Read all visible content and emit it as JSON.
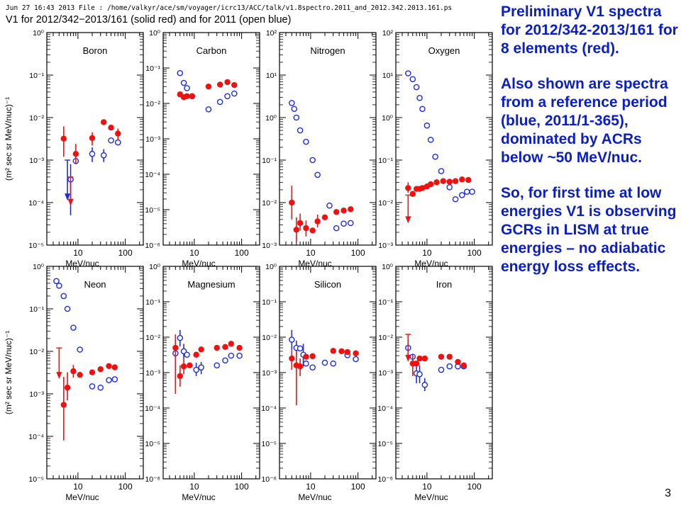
{
  "header": {
    "line1": "Jun 27 16:43 2013    File : /home/valkyr/ace/sm/voyager/icrc13/ACC/talk/v1.8spectro.2011_and_2012.342.2013.161.ps",
    "line2": "V1 for 2012/342−2013/161 (solid red) and for 2011 (open blue)"
  },
  "notes": [
    "Preliminary V1 spectra for 2012/342-2013/161 for 8 elements (red).",
    "Also shown are spectra from a reference period (blue, 2011/1-365), dominated by ACRs below ~50 MeV/nuc.",
    "So, for first time at low energies V1 is observing GCRs in LISM at true energies – no adiabatic energy loss effects."
  ],
  "page_number": "3",
  "colors": {
    "red_series": "#ee1111",
    "blue_series": "#1f2fd6",
    "notes_text": "#0b1ec6"
  },
  "chart_data": {
    "type": "scatter",
    "layout": "2x4 grid",
    "x_scale": "log",
    "y_scale": "log",
    "xlabel": "MeV/nuc",
    "ylabel": "(m² sec sr MeV/nuc)⁻¹",
    "x_tick_labels": [
      "10",
      "100"
    ],
    "series_legend": [
      {
        "name": "2012/342−2013/161",
        "style": "solid red"
      },
      {
        "name": "2011",
        "style": "open blue"
      }
    ],
    "panels": [
      {
        "element": "Boron",
        "ylim": [
          1e-05,
          1
        ],
        "y_tick_labels": [
          "10⁻⁵",
          "10⁻⁴",
          "10⁻³",
          "10⁻²",
          "10⁻¹",
          "10⁰"
        ],
        "red": [
          {
            "x": 5,
            "y": 0.0032,
            "lo": 0.0012,
            "hi": 0.0062
          },
          {
            "x": 7,
            "y": null,
            "limit": 0.0004,
            "arrow_to": 9e-05
          },
          {
            "x": 9,
            "y": 0.0014,
            "lo": 0.0008,
            "hi": 0.0024
          },
          {
            "x": 20,
            "y": 0.0033,
            "lo": 0.0022,
            "hi": 0.0045
          },
          {
            "x": 35,
            "y": 0.0078
          },
          {
            "x": 50,
            "y": 0.0058
          },
          {
            "x": 70,
            "y": 0.0042,
            "lo": 0.003,
            "hi": 0.0055
          }
        ],
        "blue": [
          {
            "x": 6,
            "y": null,
            "limit": 0.001,
            "arrow_to": 0.00012
          },
          {
            "x": 7,
            "y": 0.00035,
            "lo": 5e-05,
            "hi": 0.0008
          },
          {
            "x": 9,
            "y": 0.00095
          },
          {
            "x": 20,
            "y": 0.0014,
            "lo": 0.0009,
            "hi": 0.002
          },
          {
            "x": 35,
            "y": 0.0013,
            "lo": 0.0009,
            "hi": 0.0018
          },
          {
            "x": 50,
            "y": 0.0029
          },
          {
            "x": 70,
            "y": 0.0026
          }
        ]
      },
      {
        "element": "Carbon",
        "ylim": [
          1e-06,
          1
        ],
        "y_tick_labels": [
          "10⁻⁶",
          "10⁻⁵",
          "10⁻⁴",
          "10⁻³",
          "10⁻²",
          "10⁻¹",
          "10⁰"
        ],
        "red": [
          {
            "x": 5,
            "y": 0.018
          },
          {
            "x": 6,
            "y": 0.015
          },
          {
            "x": 7,
            "y": 0.016
          },
          {
            "x": 9,
            "y": 0.016
          },
          {
            "x": 20,
            "y": 0.03
          },
          {
            "x": 35,
            "y": 0.034
          },
          {
            "x": 50,
            "y": 0.04
          },
          {
            "x": 70,
            "y": 0.033
          }
        ],
        "blue": [
          {
            "x": 5,
            "y": 0.072
          },
          {
            "x": 6,
            "y": 0.038
          },
          {
            "x": 7,
            "y": 0.027
          },
          {
            "x": 9,
            "y": 0.016
          },
          {
            "x": 20,
            "y": 0.0068
          },
          {
            "x": 35,
            "y": 0.011
          },
          {
            "x": 50,
            "y": 0.016
          },
          {
            "x": 70,
            "y": 0.019
          }
        ]
      },
      {
        "element": "Nitrogen",
        "ylim": [
          0.001,
          100
        ],
        "y_tick_labels": [
          "10⁻³",
          "10⁻²",
          "10⁻¹",
          "10⁰",
          "10¹",
          "10²"
        ],
        "red": [
          {
            "x": 4,
            "y": 0.01,
            "lo": 0.004,
            "hi": 0.025
          },
          {
            "x": 5,
            "y": 0.0023,
            "lo": 0.0012,
            "hi": 0.0045
          },
          {
            "x": 6,
            "y": 0.0033,
            "lo": 0.0022,
            "hi": 0.0055
          },
          {
            "x": 8,
            "y": 0.0025,
            "lo": 0.0016,
            "hi": 0.0038
          },
          {
            "x": 11,
            "y": 0.0022
          },
          {
            "x": 14,
            "y": 0.0036,
            "lo": 0.0026,
            "hi": 0.0052
          },
          {
            "x": 20,
            "y": 0.0045
          },
          {
            "x": 35,
            "y": 0.006
          },
          {
            "x": 50,
            "y": 0.0065
          },
          {
            "x": 70,
            "y": 0.007
          }
        ],
        "blue": [
          {
            "x": 4,
            "y": 2.2
          },
          {
            "x": 4.5,
            "y": 1.6
          },
          {
            "x": 5,
            "y": 1.0
          },
          {
            "x": 6,
            "y": 0.5
          },
          {
            "x": 8,
            "y": 0.27
          },
          {
            "x": 11,
            "y": 0.1
          },
          {
            "x": 14,
            "y": 0.045
          },
          {
            "x": 25,
            "y": 0.0085
          },
          {
            "x": 35,
            "y": 0.0025
          },
          {
            "x": 50,
            "y": 0.0032
          },
          {
            "x": 70,
            "y": 0.0033
          }
        ]
      },
      {
        "element": "Oxygen",
        "ylim": [
          0.001,
          100
        ],
        "y_tick_labels": [
          "10⁻³",
          "10⁻²",
          "10⁻¹",
          "10⁰",
          "10¹",
          "10²"
        ],
        "red": [
          {
            "x": 4,
            "y": 0.022,
            "lo": 0.017,
            "hi": 0.03
          },
          {
            "x": 4,
            "y": null,
            "limit": 0.015,
            "arrow_to": 0.0035
          },
          {
            "x": 5,
            "y": 0.016
          },
          {
            "x": 6,
            "y": 0.021
          },
          {
            "x": 7,
            "y": 0.021
          },
          {
            "x": 8,
            "y": 0.022
          },
          {
            "x": 10,
            "y": 0.024
          },
          {
            "x": 12,
            "y": 0.027
          },
          {
            "x": 16,
            "y": 0.03
          },
          {
            "x": 22,
            "y": 0.032
          },
          {
            "x": 30,
            "y": 0.031
          },
          {
            "x": 40,
            "y": 0.032
          },
          {
            "x": 55,
            "y": 0.035
          },
          {
            "x": 75,
            "y": 0.034
          }
        ],
        "blue": [
          {
            "x": 4,
            "y": 11
          },
          {
            "x": 5,
            "y": 8
          },
          {
            "x": 6,
            "y": 5.2
          },
          {
            "x": 7,
            "y": 2.9
          },
          {
            "x": 8,
            "y": 1.6
          },
          {
            "x": 10,
            "y": 0.65
          },
          {
            "x": 12,
            "y": 0.3
          },
          {
            "x": 15,
            "y": 0.12
          },
          {
            "x": 20,
            "y": 0.055
          },
          {
            "x": 30,
            "y": 0.023
          },
          {
            "x": 40,
            "y": 0.012
          },
          {
            "x": 55,
            "y": 0.015
          },
          {
            "x": 70,
            "y": 0.018
          },
          {
            "x": 90,
            "y": 0.018
          }
        ]
      },
      {
        "element": "Neon",
        "ylim": [
          1e-05,
          1
        ],
        "y_tick_labels": [
          "10⁻⁵",
          "10⁻⁴",
          "10⁻³",
          "10⁻²",
          "10⁻¹",
          "10⁰"
        ],
        "red": [
          {
            "x": 4,
            "y": null,
            "limit": 0.012,
            "arrow_to": 0.0024
          },
          {
            "x": 5,
            "y": 0.00055,
            "lo": 8e-05,
            "hi": 0.0025
          },
          {
            "x": 6,
            "y": 0.0014,
            "lo": 0.0007,
            "hi": 0.0032
          },
          {
            "x": 8,
            "y": 0.0034,
            "lo": 0.0024,
            "hi": 0.0048
          },
          {
            "x": 11,
            "y": 0.0028
          },
          {
            "x": 20,
            "y": 0.0032
          },
          {
            "x": 30,
            "y": 0.0038
          },
          {
            "x": 45,
            "y": 0.0045
          },
          {
            "x": 60,
            "y": 0.0042
          }
        ],
        "blue": [
          {
            "x": 3.5,
            "y": 0.45
          },
          {
            "x": 4,
            "y": 0.35
          },
          {
            "x": 5,
            "y": 0.2
          },
          {
            "x": 6,
            "y": 0.1
          },
          {
            "x": 8,
            "y": 0.036
          },
          {
            "x": 11,
            "y": 0.011
          },
          {
            "x": 20,
            "y": 0.0015
          },
          {
            "x": 30,
            "y": 0.0014
          },
          {
            "x": 45,
            "y": 0.0021
          },
          {
            "x": 60,
            "y": 0.0022
          }
        ]
      },
      {
        "element": "Magnesium",
        "ylim": [
          1e-06,
          1
        ],
        "y_tick_labels": [
          "10⁻⁶",
          "10⁻⁵",
          "10⁻⁴",
          "10⁻³",
          "10⁻²",
          "10⁻¹",
          "10⁰"
        ],
        "red": [
          {
            "x": 4,
            "y": 0.005,
            "lo": 0.00025,
            "hi": 0.012
          },
          {
            "x": 5,
            "y": 0.0008,
            "lo": 0.0004,
            "hi": 0.0016
          },
          {
            "x": 6,
            "y": 0.0015,
            "lo": 0.0009,
            "hi": 0.0025
          },
          {
            "x": 8,
            "y": 0.0016
          },
          {
            "x": 11,
            "y": 0.0032
          },
          {
            "x": 14,
            "y": 0.0045
          },
          {
            "x": 30,
            "y": 0.005
          },
          {
            "x": 45,
            "y": 0.0053
          },
          {
            "x": 60,
            "y": 0.0065
          },
          {
            "x": 90,
            "y": 0.005
          }
        ],
        "blue": [
          {
            "x": 4,
            "y": 0.0035,
            "lo": 0.0005,
            "hi": 0.0085
          },
          {
            "x": 5,
            "y": 0.0095,
            "lo": 0.0055,
            "hi": 0.016
          },
          {
            "x": 6,
            "y": 0.004,
            "lo": 0.0025,
            "hi": 0.0065
          },
          {
            "x": 7,
            "y": 0.0032
          },
          {
            "x": 11,
            "y": 0.0012,
            "lo": 0.0008,
            "hi": 0.0019
          },
          {
            "x": 14,
            "y": 0.0014,
            "lo": 0.0009,
            "hi": 0.002
          },
          {
            "x": 30,
            "y": 0.0016
          },
          {
            "x": 45,
            "y": 0.0022
          },
          {
            "x": 60,
            "y": 0.003
          },
          {
            "x": 90,
            "y": 0.003
          }
        ]
      },
      {
        "element": "Silicon",
        "ylim": [
          1e-06,
          1
        ],
        "y_tick_labels": [
          "10⁻⁶",
          "10⁻⁵",
          "10⁻⁴",
          "10⁻³",
          "10⁻²",
          "10⁻¹",
          "10⁰"
        ],
        "red": [
          {
            "x": 4,
            "y": 0.0025,
            "lo": 0.0012,
            "hi": 0.0045
          },
          {
            "x": 5,
            "y": 0.0016,
            "lo": 0.00012,
            "hi": 0.004
          },
          {
            "x": 6,
            "y": 0.0015,
            "lo": 0.0008,
            "hi": 0.0025
          },
          {
            "x": 8,
            "y": 0.0028
          },
          {
            "x": 11,
            "y": 0.0029
          },
          {
            "x": 30,
            "y": 0.0041
          },
          {
            "x": 45,
            "y": 0.004
          },
          {
            "x": 60,
            "y": 0.0038
          },
          {
            "x": 90,
            "y": 0.0035
          }
        ],
        "blue": [
          {
            "x": 4,
            "y": 0.0085,
            "lo": 0.0045,
            "hi": 0.016
          },
          {
            "x": 5,
            "y": 0.005,
            "lo": 0.003,
            "hi": 0.008
          },
          {
            "x": 6,
            "y": 0.0048
          },
          {
            "x": 7,
            "y": 0.0032,
            "lo": 0.0015,
            "hi": 0.0065
          },
          {
            "x": 8,
            "y": 0.0018
          },
          {
            "x": 11,
            "y": 0.0014
          },
          {
            "x": 20,
            "y": 0.0019
          },
          {
            "x": 30,
            "y": 0.0018
          },
          {
            "x": 60,
            "y": 0.0031
          },
          {
            "x": 90,
            "y": 0.0024
          }
        ]
      },
      {
        "element": "Iron",
        "ylim": [
          1e-06,
          1
        ],
        "y_tick_labels": [
          "10⁻⁶",
          "10⁻⁵",
          "10⁻⁴",
          "10⁻³",
          "10⁻²",
          "10⁻¹",
          "10⁰"
        ],
        "red": [
          {
            "x": 4,
            "y": null,
            "limit": 0.012,
            "arrow_to": 0.0022
          },
          {
            "x": 5,
            "y": 0.0018,
            "lo": 0.0008,
            "hi": 0.0032
          },
          {
            "x": 6,
            "y": 0.0018
          },
          {
            "x": 7,
            "y": 0.0025
          },
          {
            "x": 9,
            "y": 0.0025
          },
          {
            "x": 20,
            "y": 0.0028
          },
          {
            "x": 30,
            "y": 0.0028
          },
          {
            "x": 45,
            "y": 0.002
          },
          {
            "x": 60,
            "y": 0.0016
          }
        ],
        "blue": [
          {
            "x": 4,
            "y": 0.005,
            "lo": 0.0025,
            "hi": 0.009
          },
          {
            "x": 5,
            "y": 0.0028
          },
          {
            "x": 6,
            "y": 0.00095,
            "lo": 0.0005,
            "hi": 0.0018
          },
          {
            "x": 7,
            "y": 0.0009,
            "lo": 0.0005,
            "hi": 0.0016
          },
          {
            "x": 9,
            "y": 0.00045,
            "lo": 0.0003,
            "hi": 0.0007
          },
          {
            "x": 20,
            "y": 0.0012
          },
          {
            "x": 30,
            "y": 0.0015
          },
          {
            "x": 45,
            "y": 0.0015
          },
          {
            "x": 60,
            "y": 0.0015
          }
        ]
      }
    ]
  }
}
